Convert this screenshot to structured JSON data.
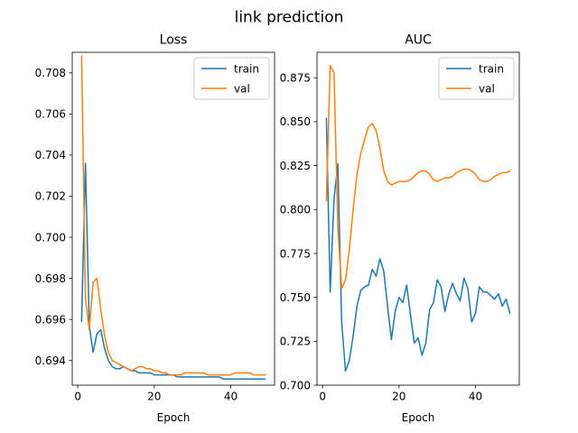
{
  "suptitle": "link prediction",
  "colors": {
    "train": "#1f77b4",
    "val": "#ff7f0e"
  },
  "chart_data": [
    {
      "type": "line",
      "title": "Loss",
      "xlabel": "Epoch",
      "ylabel": "",
      "xlim": [
        -1.45,
        51.45
      ],
      "ylim": [
        0.6928,
        0.709
      ],
      "xticks": [
        0,
        20,
        40
      ],
      "yticks": [
        0.694,
        0.696,
        0.698,
        0.7,
        0.702,
        0.704,
        0.706,
        0.708
      ],
      "ytick_labels": [
        "0.694",
        "0.696",
        "0.698",
        "0.700",
        "0.702",
        "0.704",
        "0.706",
        "0.708"
      ],
      "legend": "top-right",
      "grid": false,
      "x": [
        1,
        2,
        3,
        4,
        5,
        6,
        7,
        8,
        9,
        10,
        11,
        12,
        13,
        14,
        15,
        16,
        17,
        18,
        19,
        20,
        21,
        22,
        23,
        24,
        25,
        26,
        27,
        28,
        29,
        30,
        31,
        32,
        33,
        34,
        35,
        36,
        37,
        38,
        39,
        40,
        41,
        42,
        43,
        44,
        45,
        46,
        47,
        48,
        49
      ],
      "series": [
        {
          "name": "train",
          "values": [
            0.6959,
            0.7036,
            0.6957,
            0.6944,
            0.6953,
            0.6955,
            0.6946,
            0.694,
            0.6937,
            0.6936,
            0.6936,
            0.6937,
            0.6936,
            0.6935,
            0.6935,
            0.6934,
            0.6934,
            0.6934,
            0.6934,
            0.6933,
            0.6933,
            0.6933,
            0.6933,
            0.6933,
            0.6933,
            0.6932,
            0.6932,
            0.6932,
            0.6932,
            0.6932,
            0.6932,
            0.6932,
            0.6932,
            0.6932,
            0.6932,
            0.6932,
            0.6932,
            0.6931,
            0.6931,
            0.6931,
            0.6931,
            0.6931,
            0.6931,
            0.6931,
            0.6931,
            0.6931,
            0.6931,
            0.6931,
            0.6931
          ]
        },
        {
          "name": "val",
          "values": [
            0.7088,
            0.697,
            0.6955,
            0.6978,
            0.698,
            0.6965,
            0.6952,
            0.6944,
            0.694,
            0.6939,
            0.6938,
            0.6937,
            0.6936,
            0.6935,
            0.6936,
            0.6937,
            0.6937,
            0.6936,
            0.6936,
            0.6935,
            0.6935,
            0.6934,
            0.6934,
            0.6933,
            0.6933,
            0.6933,
            0.6933,
            0.6934,
            0.6934,
            0.6934,
            0.6934,
            0.6934,
            0.6934,
            0.6933,
            0.6933,
            0.6933,
            0.6933,
            0.6933,
            0.6933,
            0.6933,
            0.6934,
            0.6934,
            0.6934,
            0.6934,
            0.6934,
            0.6933,
            0.6933,
            0.6933,
            0.6933
          ]
        }
      ]
    },
    {
      "type": "line",
      "title": "AUC",
      "xlabel": "Epoch",
      "ylabel": "",
      "xlim": [
        -1.45,
        51.45
      ],
      "ylim": [
        0.7,
        0.8895
      ],
      "xticks": [
        0,
        20,
        40
      ],
      "yticks": [
        0.7,
        0.725,
        0.75,
        0.775,
        0.8,
        0.825,
        0.85,
        0.875
      ],
      "ytick_labels": [
        "0.700",
        "0.725",
        "0.750",
        "0.775",
        "0.800",
        "0.825",
        "0.850",
        "0.875"
      ],
      "legend": "top-right",
      "grid": false,
      "x": [
        1,
        2,
        3,
        4,
        5,
        6,
        7,
        8,
        9,
        10,
        11,
        12,
        13,
        14,
        15,
        16,
        17,
        18,
        19,
        20,
        21,
        22,
        23,
        24,
        25,
        26,
        27,
        28,
        29,
        30,
        31,
        32,
        33,
        34,
        35,
        36,
        37,
        38,
        39,
        40,
        41,
        42,
        43,
        44,
        45,
        46,
        47,
        48,
        49
      ],
      "series": [
        {
          "name": "train",
          "values": [
            0.852,
            0.753,
            0.806,
            0.826,
            0.736,
            0.708,
            0.714,
            0.728,
            0.745,
            0.754,
            0.756,
            0.757,
            0.766,
            0.762,
            0.772,
            0.765,
            0.745,
            0.726,
            0.742,
            0.75,
            0.747,
            0.757,
            0.74,
            0.724,
            0.727,
            0.717,
            0.724,
            0.743,
            0.747,
            0.76,
            0.756,
            0.742,
            0.752,
            0.758,
            0.752,
            0.748,
            0.761,
            0.755,
            0.736,
            0.741,
            0.756,
            0.753,
            0.753,
            0.751,
            0.749,
            0.752,
            0.745,
            0.749,
            0.741
          ]
        },
        {
          "name": "val",
          "values": [
            0.805,
            0.882,
            0.878,
            0.79,
            0.755,
            0.76,
            0.777,
            0.8,
            0.82,
            0.832,
            0.84,
            0.847,
            0.849,
            0.845,
            0.835,
            0.822,
            0.816,
            0.814,
            0.815,
            0.816,
            0.816,
            0.816,
            0.817,
            0.819,
            0.821,
            0.822,
            0.822,
            0.82,
            0.817,
            0.816,
            0.817,
            0.818,
            0.818,
            0.819,
            0.821,
            0.822,
            0.823,
            0.823,
            0.822,
            0.82,
            0.817,
            0.816,
            0.816,
            0.817,
            0.819,
            0.82,
            0.821,
            0.821,
            0.822
          ]
        }
      ]
    }
  ]
}
